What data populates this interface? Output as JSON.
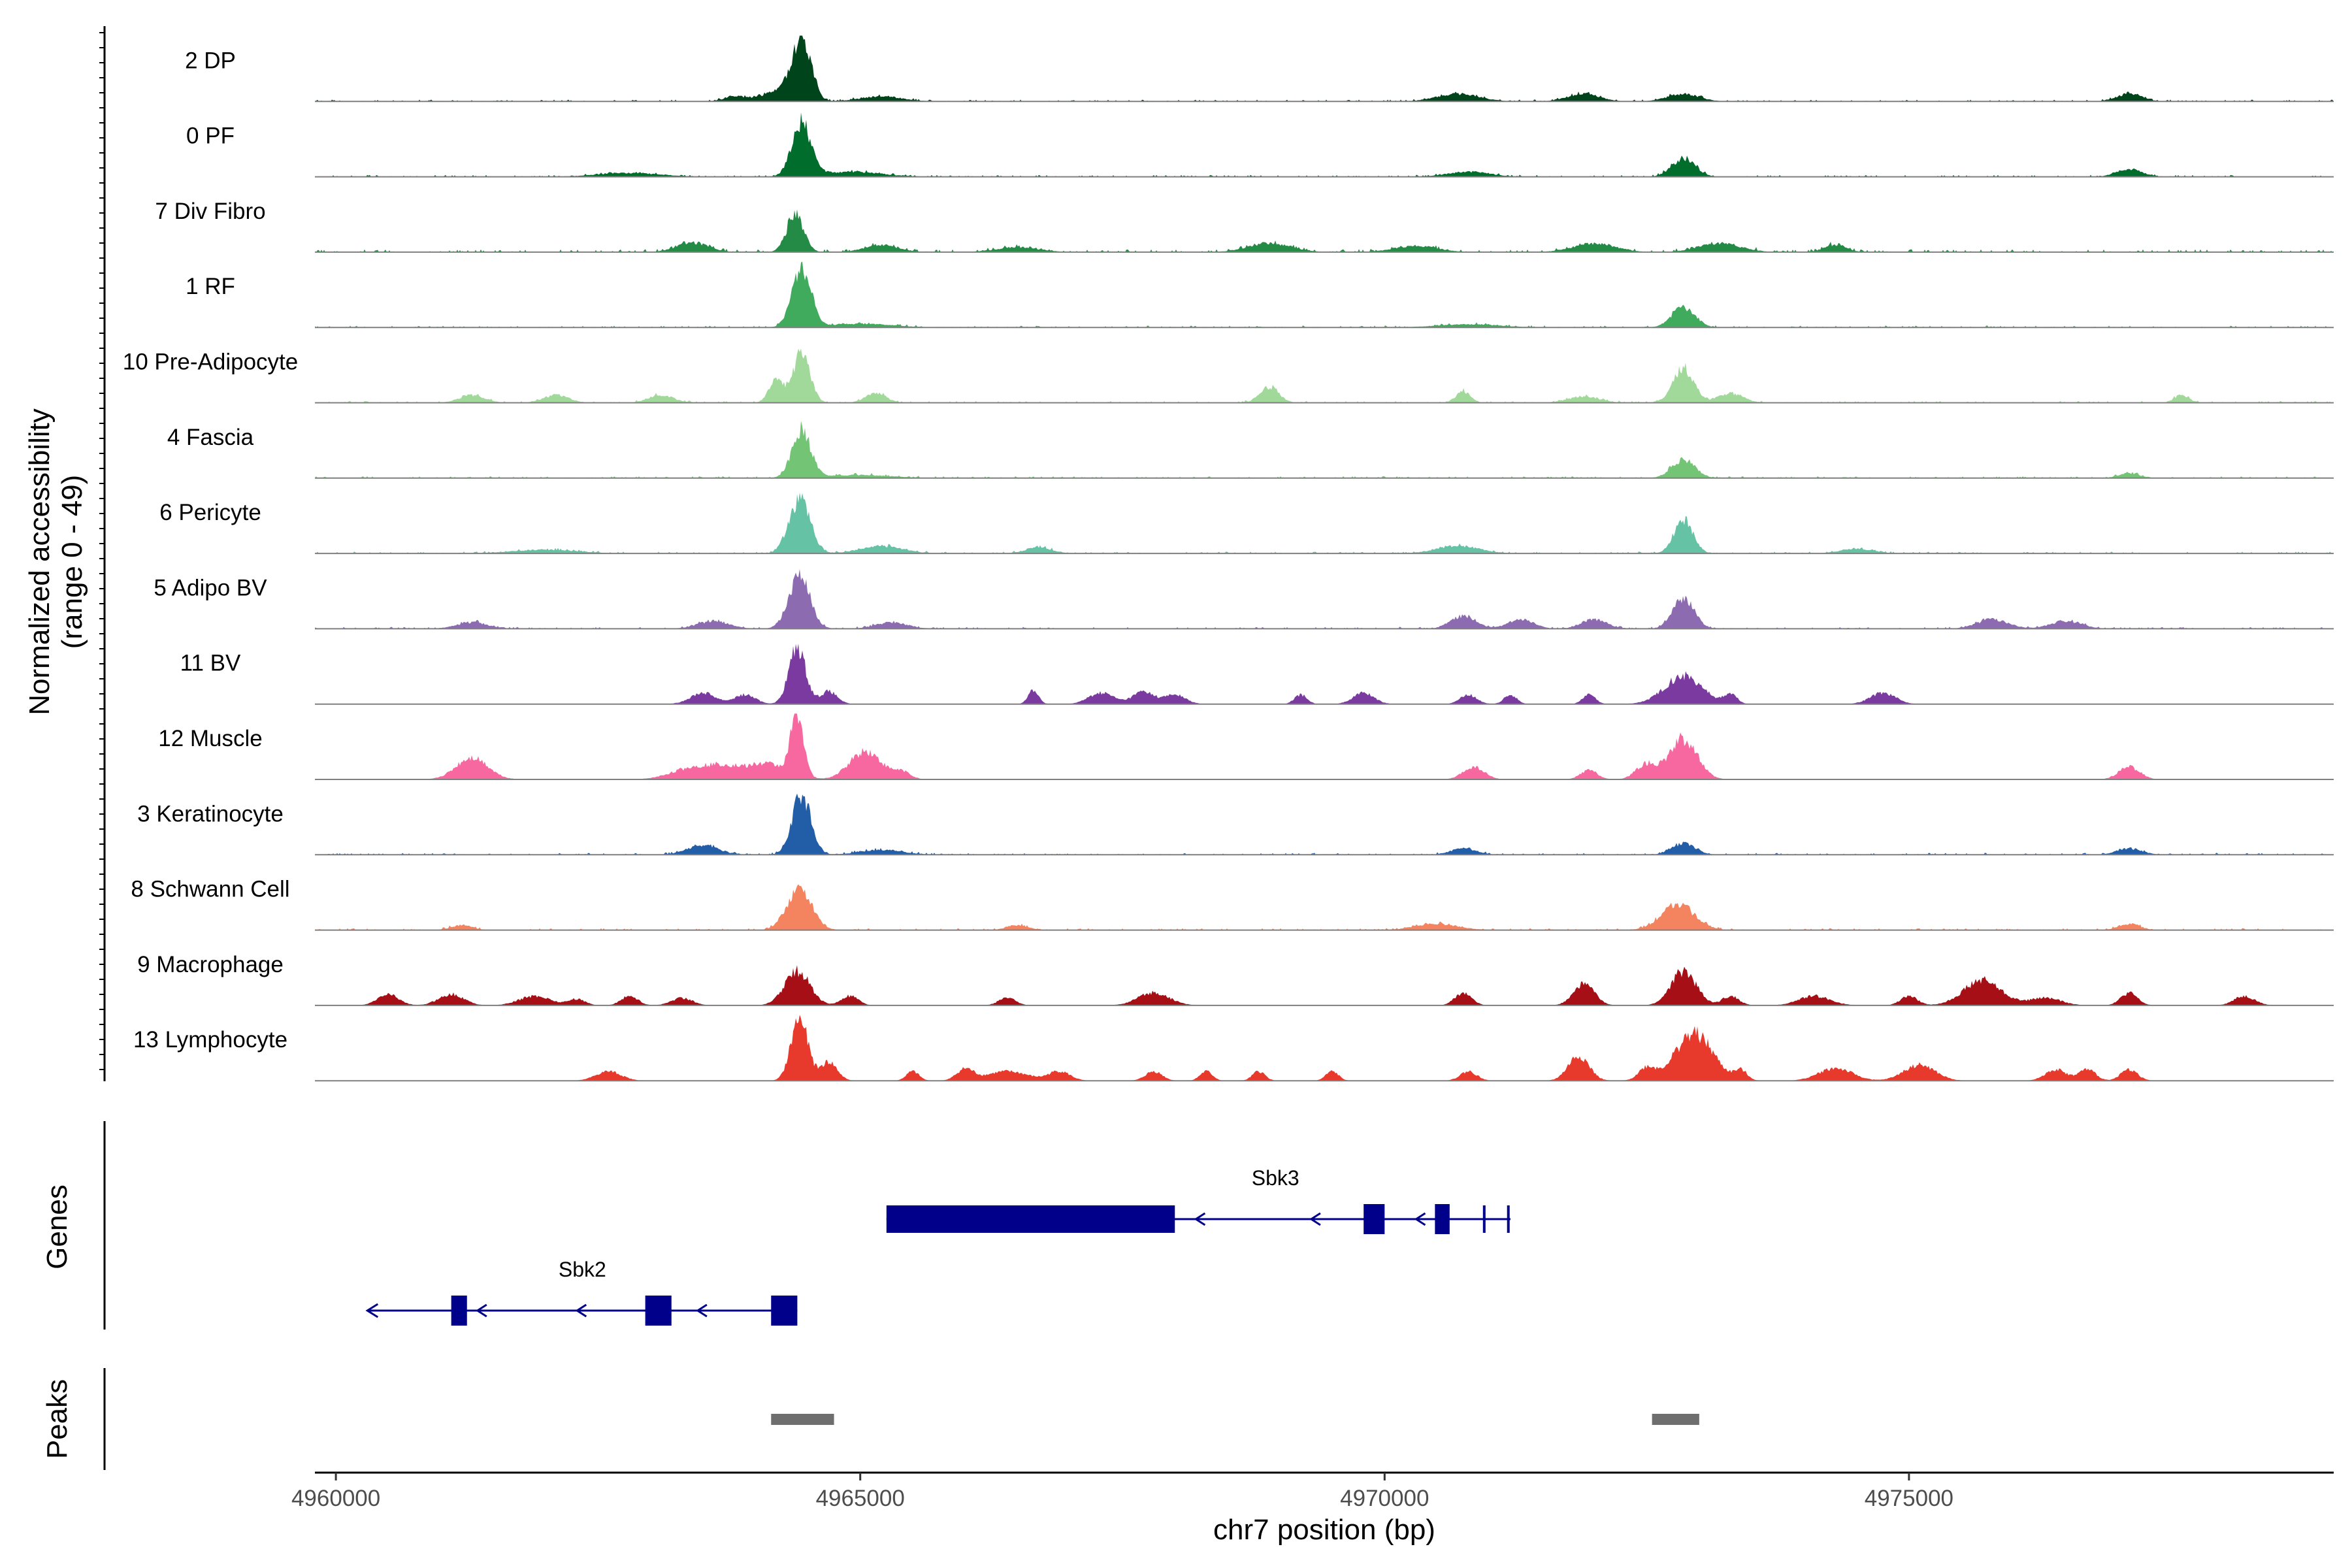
{
  "chart_data": {
    "type": "area",
    "y_title_line1": "Normalized accessibility",
    "y_title_line2": "(range 0 - 49)",
    "y_range": [
      0,
      49
    ],
    "x_title": "chr7 position (bp)",
    "x_range": [
      4959800,
      4979050
    ],
    "x_ticks": [
      4960000,
      4965000,
      4970000,
      4975000
    ],
    "x_tick_labels": [
      "4960000",
      "4965000",
      "4970000",
      "4975000"
    ],
    "grid": false,
    "tracks": [
      {
        "label": "2 DP",
        "color": "#00441b",
        "base": 2,
        "peaks": [
          [
            4964440,
            1.0,
            90
          ],
          [
            4964200,
            0.15,
            150
          ],
          [
            4965200,
            0.08,
            200
          ],
          [
            4970700,
            0.12,
            200
          ],
          [
            4971900,
            0.12,
            150
          ],
          [
            4972850,
            0.12,
            150
          ],
          [
            4977100,
            0.12,
            120
          ],
          [
            4963800,
            0.08,
            100
          ]
        ]
      },
      {
        "label": "0 PF",
        "color": "#006d2c",
        "base": 2,
        "peaks": [
          [
            4964440,
            0.85,
            90
          ],
          [
            4972850,
            0.3,
            110
          ],
          [
            4964900,
            0.08,
            300
          ],
          [
            4977100,
            0.12,
            120
          ],
          [
            4970800,
            0.08,
            200
          ],
          [
            4962800,
            0.06,
            300
          ]
        ]
      },
      {
        "label": "7 Div Fibro",
        "color": "#238b45",
        "base": 3,
        "peaks": [
          [
            4964380,
            0.6,
            80
          ],
          [
            4963400,
            0.15,
            150
          ],
          [
            4965200,
            0.12,
            150
          ],
          [
            4968900,
            0.14,
            200
          ],
          [
            4972000,
            0.14,
            200
          ],
          [
            4973200,
            0.14,
            200
          ],
          [
            4970300,
            0.1,
            200
          ],
          [
            4966500,
            0.08,
            200
          ],
          [
            4974300,
            0.12,
            100
          ]
        ]
      },
      {
        "label": "1 RF",
        "color": "#41ab5d",
        "base": 2,
        "peaks": [
          [
            4964440,
            0.95,
            90
          ],
          [
            4972850,
            0.32,
            110
          ],
          [
            4965000,
            0.06,
            300
          ],
          [
            4970800,
            0.05,
            300
          ]
        ]
      },
      {
        "label": "10 Pre-Adipocyte",
        "color": "#a1d99b",
        "base": 2,
        "peaks": [
          [
            4964440,
            0.8,
            80
          ],
          [
            4964200,
            0.35,
            70
          ],
          [
            4972850,
            0.55,
            100
          ],
          [
            4968900,
            0.25,
            90
          ],
          [
            4970750,
            0.18,
            70
          ],
          [
            4965150,
            0.15,
            100
          ],
          [
            4961300,
            0.12,
            120
          ],
          [
            4962100,
            0.12,
            120
          ],
          [
            4973300,
            0.15,
            120
          ],
          [
            4977600,
            0.12,
            70
          ],
          [
            4963100,
            0.12,
            120
          ],
          [
            4971900,
            0.1,
            150
          ]
        ]
      },
      {
        "label": "4 Fascia",
        "color": "#74c476",
        "base": 2,
        "peaks": [
          [
            4964440,
            0.75,
            90
          ],
          [
            4972850,
            0.3,
            110
          ],
          [
            4965000,
            0.05,
            300
          ],
          [
            4977100,
            0.08,
            100
          ]
        ]
      },
      {
        "label": "6 Pericyte",
        "color": "#66c2a4",
        "base": 2,
        "peaks": [
          [
            4964420,
            0.85,
            100
          ],
          [
            4972850,
            0.55,
            90
          ],
          [
            4965200,
            0.12,
            200
          ],
          [
            4966700,
            0.1,
            120
          ],
          [
            4970700,
            0.12,
            200
          ],
          [
            4974500,
            0.08,
            150
          ],
          [
            4962000,
            0.06,
            300
          ]
        ]
      },
      {
        "label": "5 Adipo BV",
        "color": "#8c6bb1",
        "base": 2,
        "peaks": [
          [
            4964420,
            0.85,
            100
          ],
          [
            4972850,
            0.5,
            100
          ],
          [
            4970750,
            0.2,
            120
          ],
          [
            4971300,
            0.15,
            120
          ],
          [
            4972000,
            0.15,
            120
          ],
          [
            4975800,
            0.15,
            150
          ],
          [
            4976500,
            0.12,
            150
          ],
          [
            4961300,
            0.1,
            150
          ],
          [
            4963600,
            0.12,
            150
          ],
          [
            4965300,
            0.1,
            150
          ]
        ]
      },
      {
        "label": "11 BV",
        "color": "#7a3aa0",
        "base": 0,
        "peaks": [
          [
            4964400,
            0.9,
            80
          ],
          [
            4972850,
            0.45,
            180
          ],
          [
            4963500,
            0.18,
            120
          ],
          [
            4963900,
            0.15,
            100
          ],
          [
            4964700,
            0.2,
            80
          ],
          [
            4966650,
            0.22,
            50
          ],
          [
            4967300,
            0.18,
            120
          ],
          [
            4967700,
            0.2,
            100
          ],
          [
            4968000,
            0.15,
            100
          ],
          [
            4969200,
            0.15,
            60
          ],
          [
            4969800,
            0.18,
            100
          ],
          [
            4970800,
            0.15,
            80
          ],
          [
            4971200,
            0.15,
            60
          ],
          [
            4971950,
            0.15,
            60
          ],
          [
            4974750,
            0.18,
            120
          ],
          [
            4973300,
            0.15,
            60
          ]
        ]
      },
      {
        "label": "12 Muscle",
        "color": "#f768a1",
        "base": 0,
        "peaks": [
          [
            4964400,
            1.0,
            60
          ],
          [
            4965050,
            0.45,
            150
          ],
          [
            4964100,
            0.25,
            200
          ],
          [
            4961300,
            0.35,
            150
          ],
          [
            4972850,
            0.65,
            130
          ],
          [
            4972500,
            0.25,
            100
          ],
          [
            4970850,
            0.2,
            100
          ],
          [
            4971950,
            0.15,
            80
          ],
          [
            4977100,
            0.2,
            100
          ],
          [
            4963400,
            0.18,
            200
          ],
          [
            4963700,
            0.15,
            150
          ],
          [
            4965400,
            0.12,
            80
          ]
        ]
      },
      {
        "label": "3 Keratinocyte",
        "color": "#225ea8",
        "base": 2,
        "peaks": [
          [
            4964440,
            0.95,
            90
          ],
          [
            4963500,
            0.15,
            150
          ],
          [
            4972850,
            0.18,
            110
          ],
          [
            4970750,
            0.1,
            120
          ],
          [
            4977100,
            0.1,
            120
          ],
          [
            4965200,
            0.08,
            200
          ]
        ]
      },
      {
        "label": "8 Schwann Cell",
        "color": "#f4845f",
        "base": 2,
        "peaks": [
          [
            4964420,
            0.65,
            120
          ],
          [
            4972800,
            0.4,
            160
          ],
          [
            4970500,
            0.1,
            200
          ],
          [
            4977100,
            0.1,
            100
          ],
          [
            4966500,
            0.08,
            100
          ],
          [
            4961200,
            0.08,
            100
          ]
        ]
      },
      {
        "label": "9 Macrophage",
        "color": "#a50f15",
        "base": 0,
        "peaks": [
          [
            4964400,
            0.55,
            120
          ],
          [
            4972850,
            0.55,
            120
          ],
          [
            4971900,
            0.35,
            100
          ],
          [
            4975700,
            0.4,
            180
          ],
          [
            4960500,
            0.18,
            100
          ],
          [
            4961100,
            0.18,
            120
          ],
          [
            4961900,
            0.15,
            150
          ],
          [
            4962300,
            0.1,
            80
          ],
          [
            4962800,
            0.15,
            80
          ],
          [
            4963300,
            0.12,
            100
          ],
          [
            4964900,
            0.15,
            80
          ],
          [
            4966400,
            0.12,
            80
          ],
          [
            4967800,
            0.2,
            150
          ],
          [
            4970750,
            0.2,
            80
          ],
          [
            4973300,
            0.15,
            80
          ],
          [
            4974100,
            0.15,
            150
          ],
          [
            4975000,
            0.15,
            80
          ],
          [
            4976300,
            0.12,
            150
          ],
          [
            4977100,
            0.2,
            80
          ],
          [
            4978200,
            0.15,
            100
          ]
        ]
      },
      {
        "label": "13 Lymphocyte",
        "color": "#e8392d",
        "base": 0,
        "peaks": [
          [
            4964420,
            1.0,
            80
          ],
          [
            4964700,
            0.3,
            80
          ],
          [
            4972950,
            0.75,
            180
          ],
          [
            4971850,
            0.4,
            100
          ],
          [
            4972500,
            0.2,
            80
          ],
          [
            4962600,
            0.15,
            120
          ],
          [
            4965500,
            0.15,
            60
          ],
          [
            4966000,
            0.18,
            80
          ],
          [
            4966400,
            0.15,
            200
          ],
          [
            4966900,
            0.15,
            100
          ],
          [
            4967800,
            0.15,
            80
          ],
          [
            4968300,
            0.15,
            60
          ],
          [
            4968800,
            0.15,
            60
          ],
          [
            4969500,
            0.15,
            60
          ],
          [
            4970800,
            0.15,
            80
          ],
          [
            4974300,
            0.2,
            160
          ],
          [
            4975100,
            0.25,
            150
          ],
          [
            4976400,
            0.18,
            100
          ],
          [
            4976700,
            0.18,
            80
          ],
          [
            4977100,
            0.18,
            80
          ],
          [
            4973400,
            0.15,
            60
          ]
        ]
      }
    ],
    "genes": [
      {
        "name": "Sbk3",
        "row": 0,
        "start": 4965250,
        "end": 4971200,
        "strand": "-",
        "exons": [
          [
            4965250,
            4968000,
            "thick"
          ],
          [
            4969800,
            4970000,
            "medium"
          ],
          [
            4970480,
            4970620,
            "medium"
          ],
          [
            4970950,
            4970970,
            "tick"
          ],
          [
            4971180,
            4971200,
            "tick"
          ]
        ],
        "arrows": [
          4968200,
          4969300,
          4970300
        ]
      },
      {
        "name": "Sbk2",
        "row": 1,
        "start": 4960300,
        "end": 4964400,
        "strand": "-",
        "exons": [
          [
            4961100,
            4961250,
            "medium"
          ],
          [
            4962950,
            4963200,
            "medium"
          ],
          [
            4964150,
            4964400,
            "medium"
          ]
        ],
        "arrows": [
          4961350,
          4962300,
          4963450
        ]
      }
    ],
    "peak_regions": [
      [
        4964150,
        4964750
      ],
      [
        4972550,
        4973000
      ]
    ],
    "gene_track_title": "Genes",
    "peak_track_title": "Peaks"
  }
}
